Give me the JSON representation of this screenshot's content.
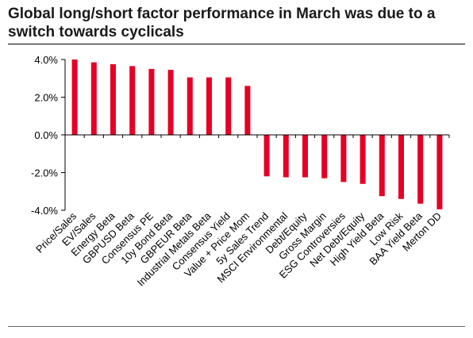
{
  "header": {
    "title_line1": "Global long/short factor performance in March was due to a",
    "title_line2": "switch towards cyclicals"
  },
  "chart_data": {
    "type": "bar",
    "title": "Global long/short factor performance in March was due to a switch towards cyclicals",
    "categories": [
      "Price/Sales",
      "EV/Sales",
      "Energy Beta",
      "GBPUSD Beta",
      "Consensus PE",
      "10y Bond Beta",
      "GBPEUR Beta",
      "Industrial Metals Beta",
      "Consensus Yield",
      "Value + Price Mom",
      "5y Sales Trend",
      "MSCI Environmental",
      "Debt/Equity",
      "Gross Margin",
      "ESG Controversies",
      "Net Debt/Equity",
      "High Yield Beta",
      "Low Risk",
      "BAA Yield Beta",
      "Merton DD"
    ],
    "values": [
      4.0,
      3.85,
      3.75,
      3.65,
      3.5,
      3.45,
      3.05,
      3.05,
      3.05,
      2.6,
      -2.2,
      -2.25,
      -2.25,
      -2.3,
      -2.5,
      -2.6,
      -3.25,
      -3.4,
      -3.65,
      -3.95
    ],
    "ylim": [
      -4.0,
      4.0
    ],
    "yticks": [
      4.0,
      2.0,
      0.0,
      -2.0,
      -4.0
    ],
    "ytick_labels": [
      "4.0%",
      "2.0%",
      "0.0%",
      "-2.0%",
      "-4.0%"
    ],
    "y_unit": "%",
    "bar_color": "#e60023",
    "grid": false,
    "legend": "none"
  }
}
